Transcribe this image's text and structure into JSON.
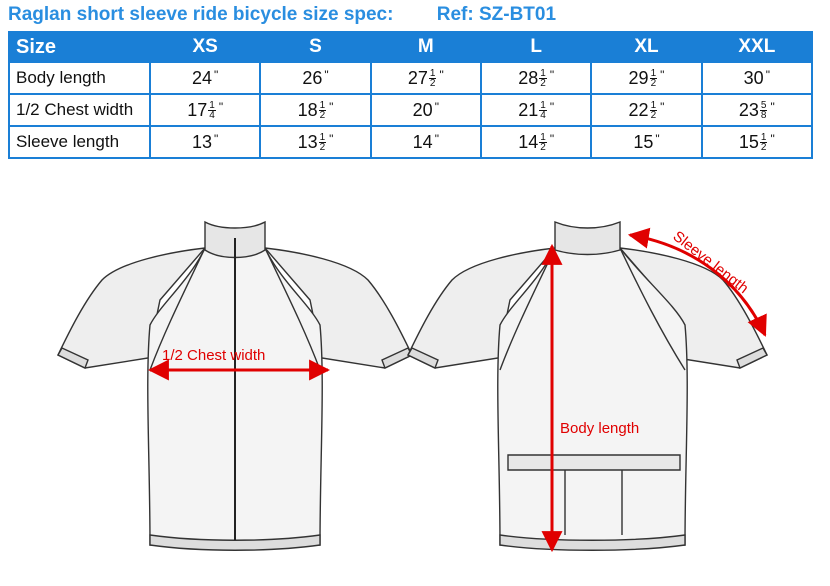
{
  "title": {
    "main": "Raglan short sleeve ride bicycle size spec:",
    "ref": "Ref: SZ-BT01"
  },
  "table": {
    "header": [
      "Size",
      "XS",
      "S",
      "M",
      "L",
      "XL",
      "XXL"
    ],
    "rows": [
      {
        "label": "Body length",
        "cells": [
          {
            "whole": "24",
            "num": "",
            "den": ""
          },
          {
            "whole": "26",
            "num": "",
            "den": ""
          },
          {
            "whole": "27",
            "num": "1",
            "den": "2"
          },
          {
            "whole": "28",
            "num": "1",
            "den": "2"
          },
          {
            "whole": "29",
            "num": "1",
            "den": "2"
          },
          {
            "whole": "30",
            "num": "",
            "den": ""
          }
        ]
      },
      {
        "label": "1/2 Chest width",
        "cells": [
          {
            "whole": "17",
            "num": "1",
            "den": "4"
          },
          {
            "whole": "18",
            "num": "1",
            "den": "2"
          },
          {
            "whole": "20",
            "num": "",
            "den": ""
          },
          {
            "whole": "21",
            "num": "1",
            "den": "4"
          },
          {
            "whole": "22",
            "num": "1",
            "den": "2"
          },
          {
            "whole": "23",
            "num": "5",
            "den": "8"
          }
        ]
      },
      {
        "label": "Sleeve length",
        "cells": [
          {
            "whole": "13",
            "num": "",
            "den": ""
          },
          {
            "whole": "13",
            "num": "1",
            "den": "2"
          },
          {
            "whole": "14",
            "num": "",
            "den": ""
          },
          {
            "whole": "14",
            "num": "1",
            "den": "2"
          },
          {
            "whole": "15",
            "num": "",
            "den": ""
          },
          {
            "whole": "15",
            "num": "1",
            "den": "2"
          }
        ]
      }
    ],
    "inch_mark": "\""
  },
  "diagram": {
    "chest_label": "1/2 Chest width",
    "body_label": "Body length",
    "sleeve_label": "Sleeve length",
    "arrow_color": "#e00000",
    "table_color": "#1a7fd6"
  }
}
